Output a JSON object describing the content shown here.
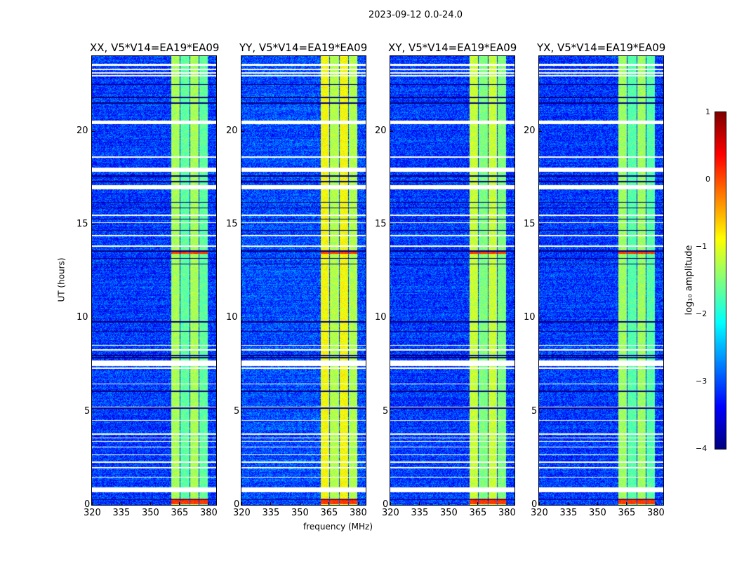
{
  "chart_data": {
    "type": "heatmap",
    "suptitle": "2023-09-12 0.0-24.0",
    "xlabel": "frequency (MHz)",
    "ylabel": "UT (hours)",
    "xlim": [
      320,
      384
    ],
    "ylim": [
      0,
      24
    ],
    "xticks": [
      320,
      335,
      350,
      365,
      380
    ],
    "yticks": [
      0,
      5,
      10,
      15,
      20
    ],
    "panels": [
      {
        "title": "XX, V5*V14=EA19*EA09",
        "band_level": -1.3,
        "noise_level": -3.1
      },
      {
        "title": "YY, V5*V14=EA19*EA09",
        "band_level": -0.9,
        "noise_level": -3.0
      },
      {
        "title": "XY, V5*V14=EA19*EA09",
        "band_level": -1.15,
        "noise_level": -3.1
      },
      {
        "title": "YX, V5*V14=EA19*EA09",
        "band_level": -1.35,
        "noise_level": -3.1
      }
    ],
    "rfi_bands_mhz": [
      [
        360.5,
        365
      ],
      [
        365.3,
        370
      ],
      [
        370.3,
        374.6
      ],
      [
        375,
        379.3
      ]
    ],
    "flagged_hours": [
      [
        23.5,
        23.6
      ],
      [
        23.28,
        23.34
      ],
      [
        23.1,
        23.16
      ],
      [
        22.93,
        22.99
      ],
      [
        20.4,
        20.56
      ],
      [
        18.58,
        18.64
      ],
      [
        17.85,
        18.05
      ],
      [
        16.9,
        17.1
      ],
      [
        15.48,
        15.54
      ],
      [
        15.08,
        15.14
      ],
      [
        14.38,
        14.44
      ],
      [
        13.83,
        13.9
      ],
      [
        8.53,
        8.58
      ],
      [
        8.28,
        8.34
      ],
      [
        7.45,
        7.75
      ],
      [
        7.3,
        7.38
      ],
      [
        6.47,
        6.52
      ],
      [
        5.22,
        5.28
      ],
      [
        4.52,
        4.57
      ],
      [
        3.78,
        3.83
      ],
      [
        3.58,
        3.63
      ],
      [
        3.38,
        3.43
      ],
      [
        3.08,
        3.13
      ],
      [
        2.68,
        2.73
      ],
      [
        2.28,
        2.33
      ],
      [
        1.98,
        2.03
      ],
      [
        1.48,
        1.53
      ],
      [
        0.7,
        0.95
      ]
    ],
    "dark_hours": [
      22.5,
      21.8,
      21.5,
      17.6,
      17.3,
      16.2,
      15.9,
      15.3,
      14.7,
      13.6,
      13.2,
      12.9,
      9.8,
      9.3,
      8.0,
      7.9,
      6.1,
      5.2,
      0.3
    ],
    "hot_hours": [
      [
        13.45,
        13.6
      ],
      [
        0.05,
        0.35
      ]
    ],
    "colorbar": {
      "label": "log₁₀ amplitude",
      "range": [
        -4,
        1
      ],
      "ticks": [
        1,
        0,
        -1,
        -2,
        -3,
        -4
      ],
      "tick_labels": [
        "1",
        "0",
        "−1",
        "−2",
        "−3",
        "−4"
      ],
      "colormap": "jet"
    }
  }
}
